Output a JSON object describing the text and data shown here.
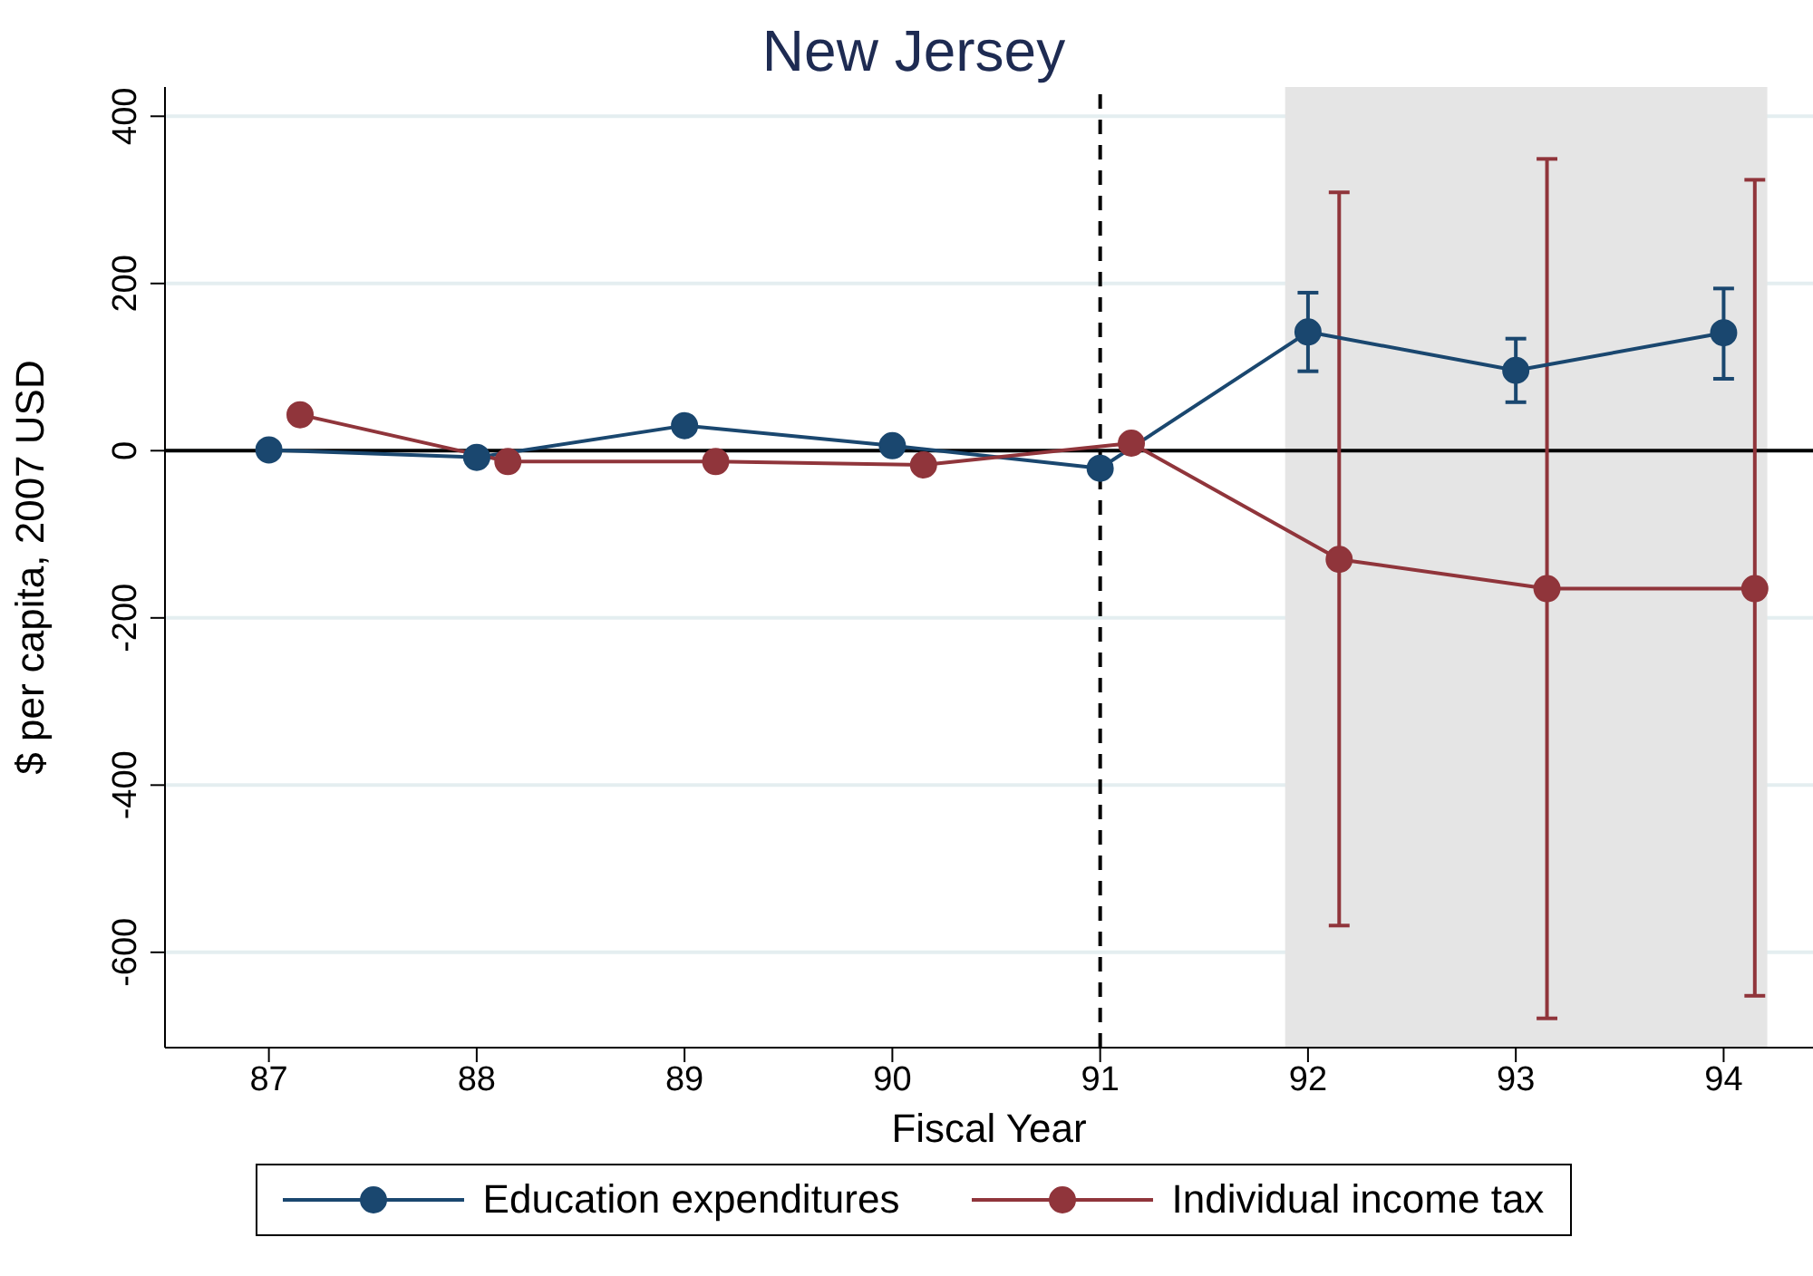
{
  "chart_data": {
    "type": "line",
    "title": "New Jersey",
    "xlabel": "Fiscal Year",
    "ylabel": "$ per capita, 2007 USD",
    "xlim": [
      86.5,
      94.43
    ],
    "xticks": [
      87,
      88,
      89,
      90,
      91,
      92,
      93,
      94
    ],
    "ylim": [
      -714,
      435
    ],
    "yticks": [
      -600,
      -400,
      -200,
      0,
      200,
      400
    ],
    "grid": "y",
    "legend": "bottom",
    "marker": "circle",
    "line_style": "solid",
    "series": [
      {
        "name": "Education expenditures",
        "color": "#1a476f",
        "x": [
          87,
          88,
          89,
          90,
          91,
          92,
          93,
          94
        ],
        "values": [
          1,
          -8,
          30,
          6,
          -21,
          142,
          96,
          141
        ],
        "errors": [
          null,
          null,
          null,
          null,
          null,
          [
            95,
            189
          ],
          [
            58,
            134
          ],
          [
            86,
            194
          ]
        ]
      },
      {
        "name": "Individual income tax",
        "color": "#90353b",
        "x": [
          87.15,
          88.15,
          89.15,
          90.15,
          91.15,
          92.15,
          93.15,
          94.15
        ],
        "values": [
          43,
          -13,
          -13,
          -17,
          9,
          -130,
          -165,
          -165
        ],
        "errors": [
          null,
          null,
          null,
          null,
          null,
          [
            -568,
            309
          ],
          [
            -679,
            349
          ],
          [
            -652,
            324
          ]
        ]
      }
    ],
    "ref_lines": [
      {
        "axis": "x",
        "value": 91,
        "color": "#000000",
        "line_style": "dashed"
      },
      {
        "axis": "y",
        "value": 0,
        "color": "#000000",
        "line_style": "solid"
      }
    ],
    "bands": [
      {
        "axis": "x",
        "from": 91.89,
        "to": 94.21,
        "color": "#e5e5e5"
      }
    ]
  }
}
